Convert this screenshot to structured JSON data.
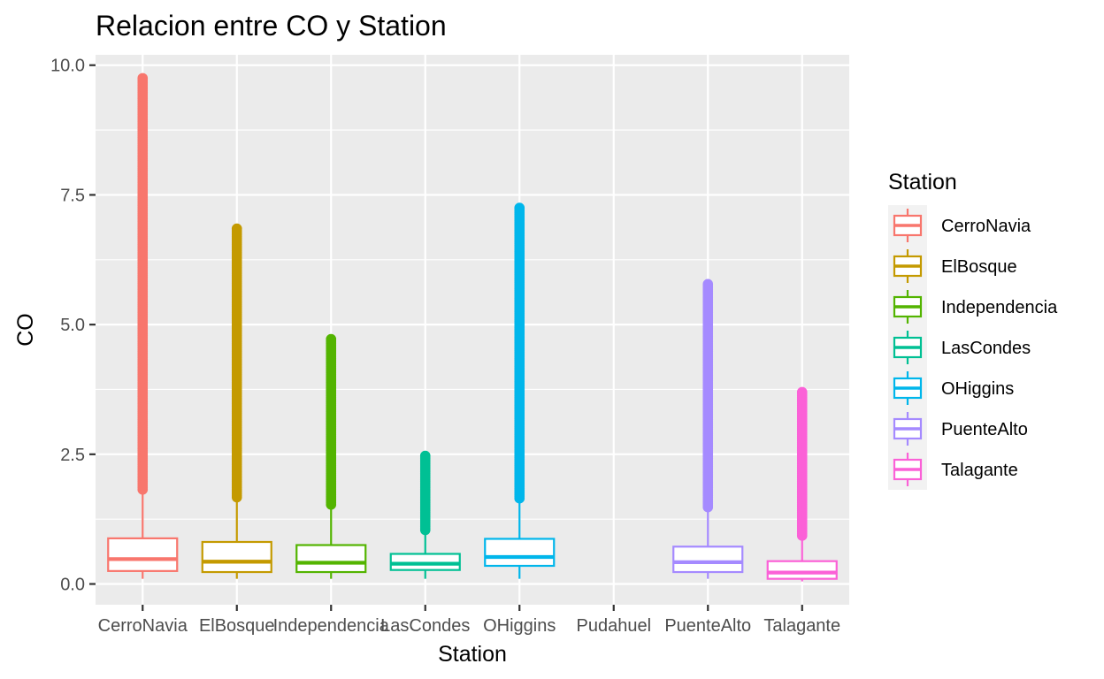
{
  "chart_data": {
    "type": "box",
    "title": "Relacion entre CO y Station",
    "xlabel": "Station",
    "ylabel": "CO",
    "ylim": [
      -0.4,
      10.2
    ],
    "yticks": [
      0.0,
      2.5,
      5.0,
      7.5,
      10.0
    ],
    "ytick_labels": [
      "0.0",
      "2.5",
      "5.0",
      "7.5",
      "10.0"
    ],
    "categories": [
      "CerroNavia",
      "ElBosque",
      "Independencia",
      "LasCondes",
      "OHiggins",
      "Pudahuel",
      "PuenteAlto",
      "Talagante"
    ],
    "legend": {
      "title": "Station",
      "position": "right",
      "entries": [
        "CerroNavia",
        "ElBosque",
        "Independencia",
        "LasCondes",
        "OHiggins",
        "PuenteAlto",
        "Talagante"
      ]
    },
    "grid": true,
    "series": [
      {
        "name": "CerroNavia",
        "color": "#F8766D",
        "whisker_low": 0.1,
        "q1": 0.25,
        "median": 0.48,
        "q3": 0.88,
        "whisker_high": 1.82,
        "outlier_min": 1.82,
        "outlier_max": 9.75
      },
      {
        "name": "ElBosque",
        "color": "#C49A00",
        "whisker_low": 0.1,
        "q1": 0.23,
        "median": 0.43,
        "q3": 0.81,
        "whisker_high": 1.67,
        "outlier_min": 1.67,
        "outlier_max": 6.85
      },
      {
        "name": "Independencia",
        "color": "#53B400",
        "whisker_low": 0.1,
        "q1": 0.23,
        "median": 0.41,
        "q3": 0.75,
        "whisker_high": 1.53,
        "outlier_min": 1.53,
        "outlier_max": 4.72
      },
      {
        "name": "LasCondes",
        "color": "#00C094",
        "whisker_low": 0.1,
        "q1": 0.27,
        "median": 0.39,
        "q3": 0.58,
        "whisker_high": 1.04,
        "outlier_min": 1.04,
        "outlier_max": 2.47
      },
      {
        "name": "OHiggins",
        "color": "#00B6EB",
        "whisker_low": 0.1,
        "q1": 0.35,
        "median": 0.52,
        "q3": 0.87,
        "whisker_high": 1.65,
        "outlier_min": 1.65,
        "outlier_max": 7.25
      },
      {
        "name": "Pudahuel",
        "color": "",
        "whisker_low": null,
        "q1": null,
        "median": null,
        "q3": null,
        "whisker_high": null,
        "outlier_min": null,
        "outlier_max": null
      },
      {
        "name": "PuenteAlto",
        "color": "#A58AFF",
        "whisker_low": 0.1,
        "q1": 0.23,
        "median": 0.42,
        "q3": 0.72,
        "whisker_high": 1.48,
        "outlier_min": 1.48,
        "outlier_max": 5.78
      },
      {
        "name": "Talagante",
        "color": "#FB61D7",
        "whisker_low": 0.05,
        "q1": 0.1,
        "median": 0.22,
        "q3": 0.44,
        "whisker_high": 0.93,
        "outlier_min": 0.93,
        "outlier_max": 3.7
      }
    ]
  }
}
